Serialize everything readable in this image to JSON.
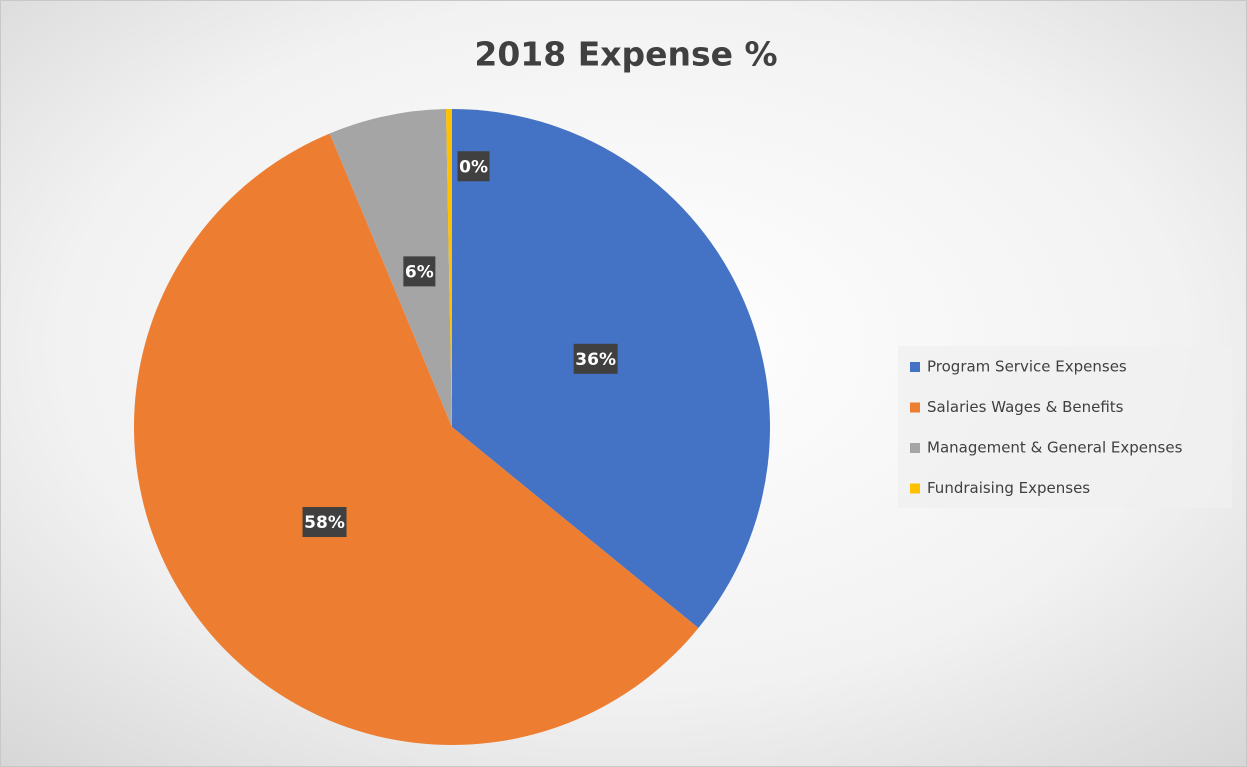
{
  "chart_data": {
    "type": "pie",
    "title": "2018 Expense %",
    "categories": [
      "Program Service Expenses",
      "Salaries Wages & Benefits",
      "Management & General Expenses",
      "Fundraising Expenses"
    ],
    "values": [
      36,
      58,
      6,
      0.3
    ],
    "value_labels": [
      "36%",
      "58%",
      "6%",
      "0%"
    ],
    "colors": [
      "#4472c4",
      "#ed7d31",
      "#a5a5a5",
      "#ffc000"
    ],
    "legend": "right"
  }
}
